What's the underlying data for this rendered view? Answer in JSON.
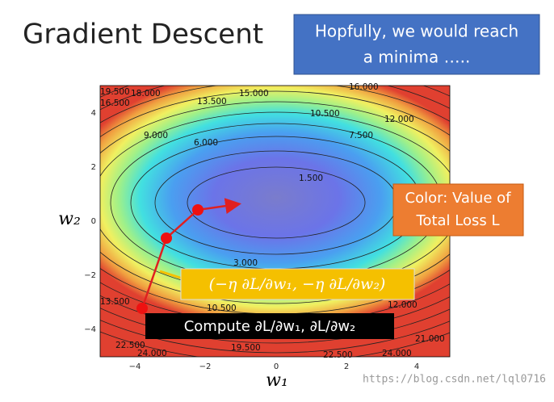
{
  "header": {
    "title": "Gradient Descent"
  },
  "callouts": {
    "top": [
      "Hopfully, we would reach",
      "a minima ….."
    ],
    "color": [
      "Color: Value of",
      "Total Loss L"
    ],
    "step": "(−η ∂L/∂w₁, −η ∂L/∂w₂)",
    "compute": "Compute ∂L/∂w₁, ∂L/∂w₂"
  },
  "plot": {
    "xlabel": "w₁",
    "ylabel": "w₂",
    "xticks": [
      "−4",
      "−2",
      "0",
      "2",
      "4"
    ],
    "yticks": [
      "4",
      "2",
      "0",
      "−2",
      "−4"
    ],
    "contour_labels": [
      "19.500",
      "16.500",
      "18.000",
      "15.000",
      "13.500",
      "10.500",
      "12.000",
      "9.000",
      "6.000",
      "7.500",
      "1.500",
      "3.000",
      "13.500",
      "10.500",
      "12.000",
      "22.500",
      "24.000",
      "19.500",
      "22.500",
      "24.000",
      "21.000",
      "16.000"
    ]
  },
  "watermark": "https://blog.csdn.net/lql0716"
}
